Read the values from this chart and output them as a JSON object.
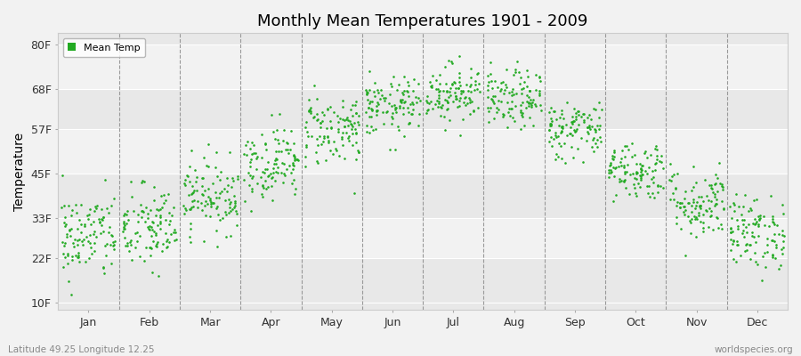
{
  "title": "Monthly Mean Temperatures 1901 - 2009",
  "ylabel": "Temperature",
  "xlabel_labels": [
    "Jan",
    "Feb",
    "Mar",
    "Apr",
    "May",
    "Jun",
    "Jul",
    "Aug",
    "Sep",
    "Oct",
    "Nov",
    "Dec"
  ],
  "yticks": [
    10,
    22,
    33,
    45,
    57,
    68,
    80
  ],
  "ytick_labels": [
    "10F",
    "22F",
    "33F",
    "45F",
    "57F",
    "68F",
    "80F"
  ],
  "ylim": [
    8,
    83
  ],
  "xlim": [
    0,
    12
  ],
  "dot_color": "#22aa22",
  "bg_color": "#f2f2f2",
  "stripe_colors": [
    "#e8e8e8",
    "#f2f2f2"
  ],
  "vline_color": "#999999",
  "legend_label": "Mean Temp",
  "footer_left": "Latitude 49.25 Longitude 12.25",
  "footer_right": "worldspecies.org",
  "years": 109,
  "monthly_means_F": [
    28,
    30,
    39,
    48,
    57,
    63,
    67,
    65,
    57,
    46,
    37,
    29
  ],
  "monthly_std_F": [
    6,
    6,
    5,
    5,
    5,
    4,
    4,
    4,
    4,
    4,
    5,
    5
  ]
}
